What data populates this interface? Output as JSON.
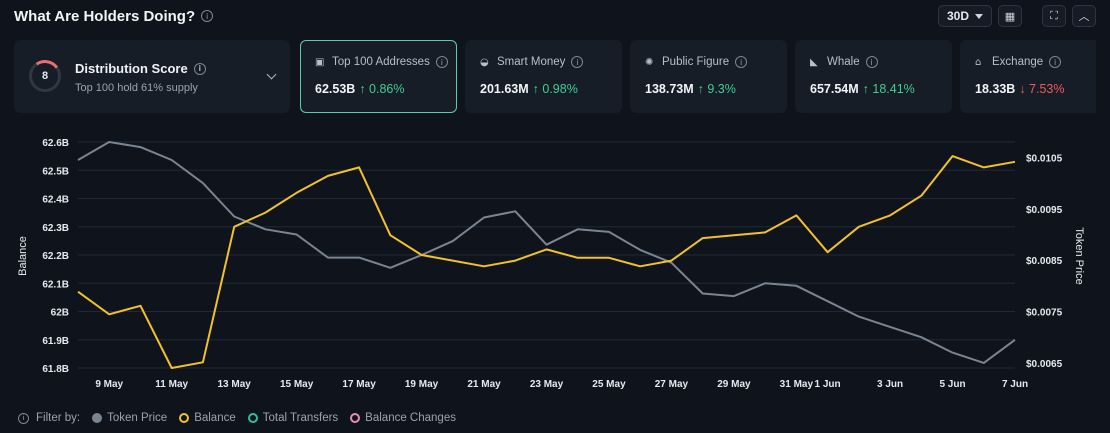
{
  "header": {
    "title": "What Are Holders Doing?",
    "period": "30D"
  },
  "distribution": {
    "score": "8",
    "title": "Distribution Score",
    "subtitle": "Top 100 hold 61% supply"
  },
  "metrics": [
    {
      "label": "Top 100 Addresses",
      "value": "62.53B",
      "change": "↑ 0.86%",
      "direction": "up",
      "icon": "wallet-icon"
    },
    {
      "label": "Smart Money",
      "value": "201.63M",
      "change": "↑ 0.98%",
      "direction": "up",
      "icon": "smart-money-icon"
    },
    {
      "label": "Public Figure",
      "value": "138.73M",
      "change": "↑ 9.3%",
      "direction": "up",
      "icon": "public-figure-icon"
    },
    {
      "label": "Whale",
      "value": "657.54M",
      "change": "↑ 18.41%",
      "direction": "up",
      "icon": "whale-icon"
    },
    {
      "label": "Exchange",
      "value": "18.33B",
      "change": "↓ 7.53%",
      "direction": "down",
      "icon": "exchange-icon"
    }
  ],
  "colors": {
    "price": "#7b8491",
    "balance": "#f2c12e",
    "transfers": "#2fbf9f",
    "changes": "#e78fb3",
    "up": "#3fcf8e",
    "down": "#ef5b5b"
  },
  "legend": {
    "filter_label": "Filter by:",
    "items": [
      "Token Price",
      "Balance",
      "Total Transfers",
      "Balance Changes"
    ]
  },
  "chart_data": {
    "type": "line",
    "x": [
      "8 May",
      "9 May",
      "10 May",
      "11 May",
      "12 May",
      "13 May",
      "14 May",
      "15 May",
      "16 May",
      "17 May",
      "18 May",
      "19 May",
      "20 May",
      "21 May",
      "22 May",
      "23 May",
      "24 May",
      "25 May",
      "26 May",
      "27 May",
      "28 May",
      "29 May",
      "30 May",
      "31 May",
      "1 Jun",
      "2 Jun",
      "3 Jun",
      "4 Jun",
      "5 Jun",
      "6 Jun",
      "7 Jun"
    ],
    "xticks": [
      "9 May",
      "11 May",
      "13 May",
      "15 May",
      "17 May",
      "19 May",
      "21 May",
      "23 May",
      "25 May",
      "27 May",
      "29 May",
      "31 May",
      "1 Jun",
      "3 Jun",
      "5 Jun",
      "7 Jun"
    ],
    "ylabel_left": "Balance",
    "ylabel_right": "Token Price",
    "yticks_left": [
      "61.8B",
      "61.9B",
      "62B",
      "62.1B",
      "62.2B",
      "62.3B",
      "62.4B",
      "62.5B",
      "62.6B"
    ],
    "yticks_right": [
      "$0.0065",
      "$0.0075",
      "$0.0085",
      "$0.0095",
      "$0.0105"
    ],
    "ylim_left": [
      61.8,
      62.6
    ],
    "ylim_right": [
      0.0064,
      0.0108
    ],
    "series": [
      {
        "name": "Balance",
        "axis": "left",
        "values": [
          62.07,
          61.99,
          62.02,
          61.8,
          61.82,
          62.3,
          62.35,
          62.42,
          62.48,
          62.51,
          62.27,
          62.2,
          62.18,
          62.16,
          62.18,
          62.22,
          62.19,
          62.19,
          62.16,
          62.18,
          62.26,
          62.27,
          62.28,
          62.34,
          62.21,
          62.3,
          62.34,
          62.41,
          62.55,
          62.51,
          62.53
        ]
      },
      {
        "name": "Token Price",
        "axis": "right",
        "values": [
          0.01045,
          0.0108,
          0.0107,
          0.01045,
          0.01,
          0.00935,
          0.0091,
          0.009,
          0.00855,
          0.00855,
          0.00835,
          0.0086,
          0.00887,
          0.00933,
          0.00945,
          0.0088,
          0.0091,
          0.00905,
          0.0087,
          0.00845,
          0.00785,
          0.0078,
          0.00805,
          0.008,
          0.0077,
          0.0074,
          0.0072,
          0.007,
          0.0067,
          0.0065,
          0.00695
        ]
      }
    ]
  }
}
